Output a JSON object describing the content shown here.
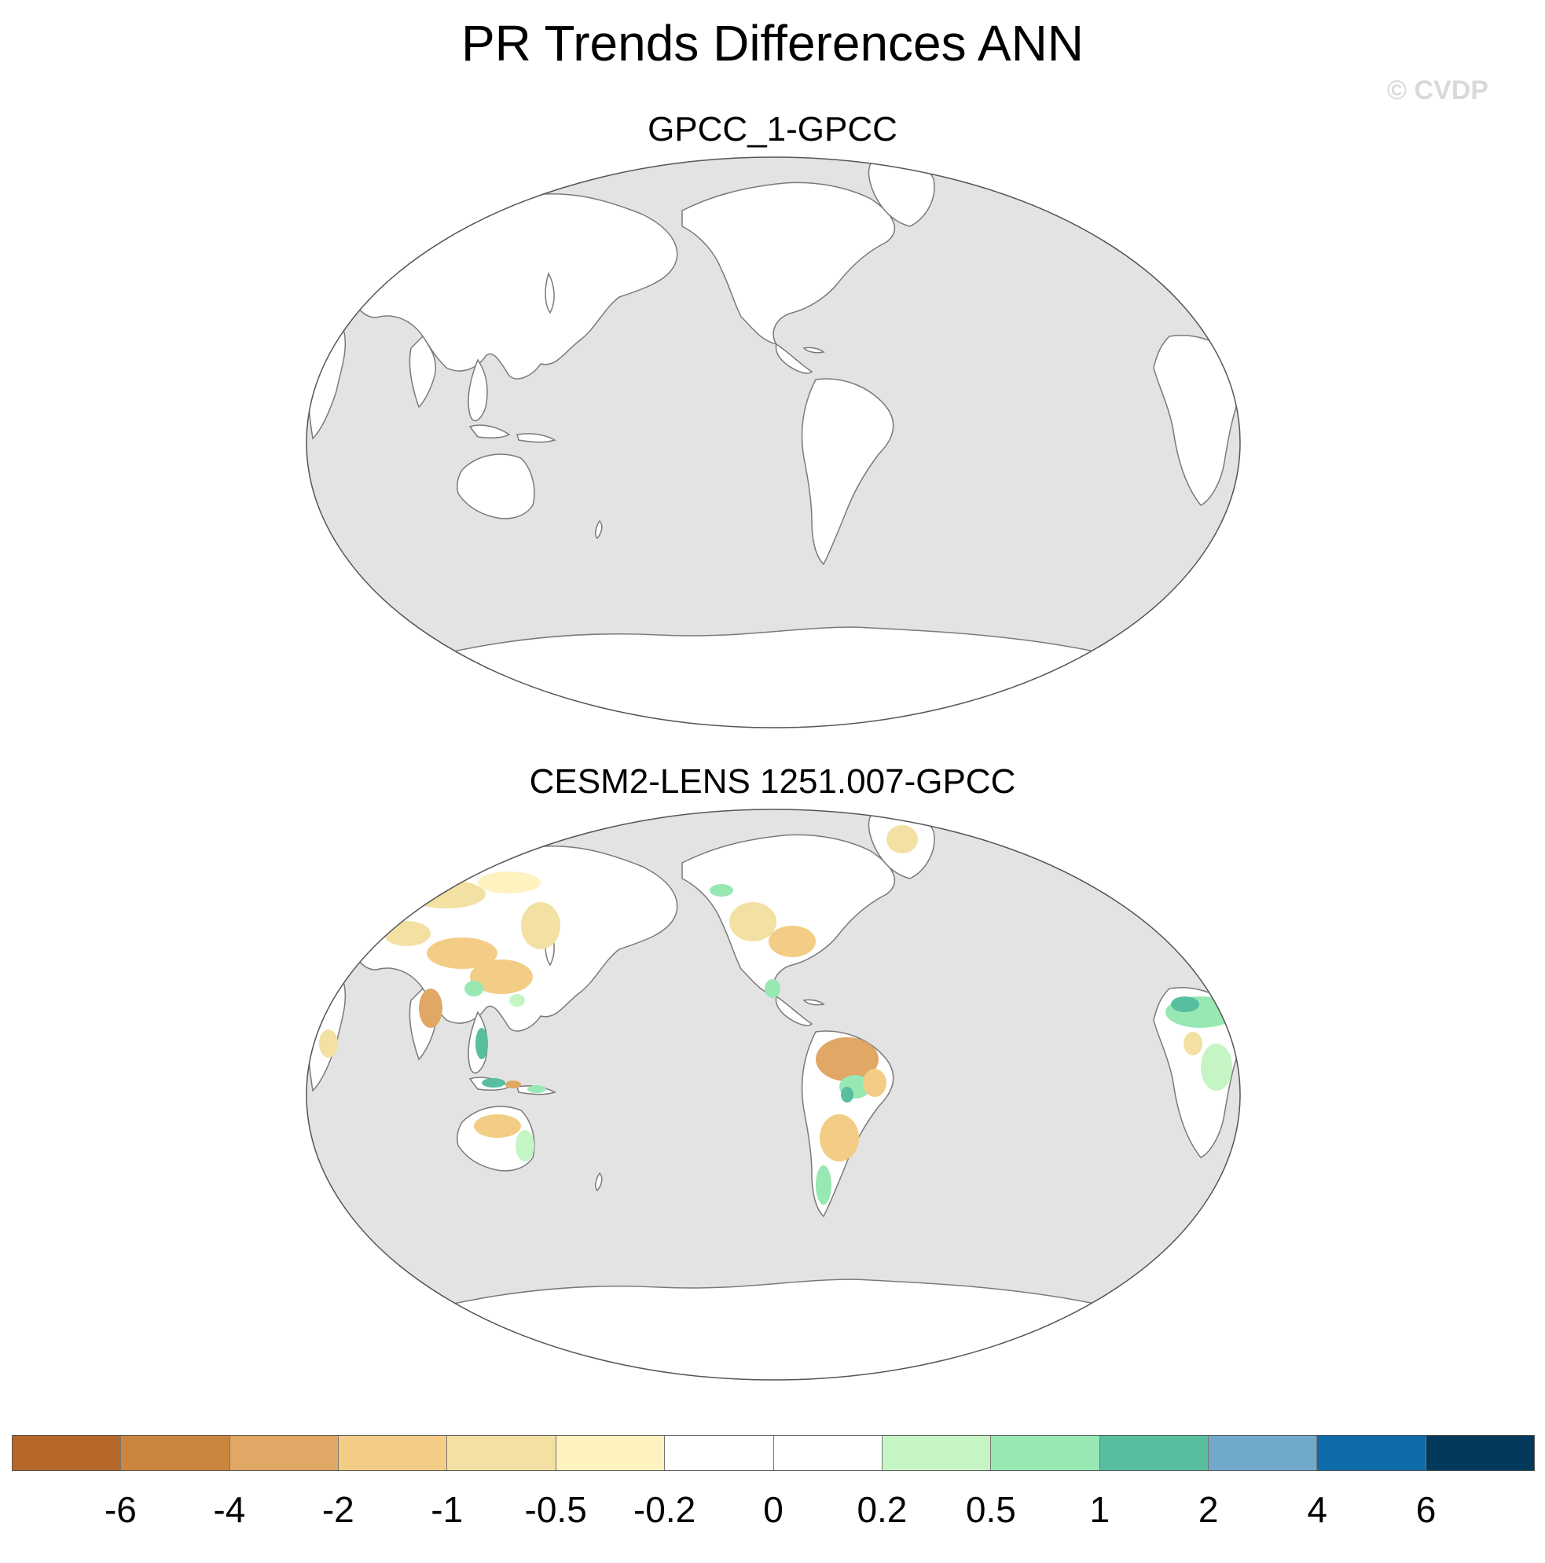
{
  "title": "PR Trends Differences ANN",
  "watermark": "© CVDP",
  "panels": [
    {
      "title": "GPCC_1-GPCC"
    },
    {
      "title": "CESM2-LENS 1251.007-GPCC"
    }
  ],
  "colors": {
    "ocean": "#e3e3e3",
    "land_no_change": "#ffffff",
    "coastline": "#7a7a7a"
  },
  "colorbar": {
    "colors": [
      "#b5682a",
      "#cc853f",
      "#e0a765",
      "#f3cd86",
      "#f3e0a3",
      "#fdf2c0",
      "#ffffff",
      "#ffffff",
      "#c5f5c5",
      "#98e8b3",
      "#57bfa0",
      "#71a9cb",
      "#0f6aa8",
      "#033a5c"
    ],
    "labels": [
      "-6",
      "-4",
      "-2",
      "-1",
      "-0.5",
      "-0.2",
      "0",
      "0.2",
      "0.5",
      "1",
      "2",
      "4",
      "6"
    ]
  }
}
